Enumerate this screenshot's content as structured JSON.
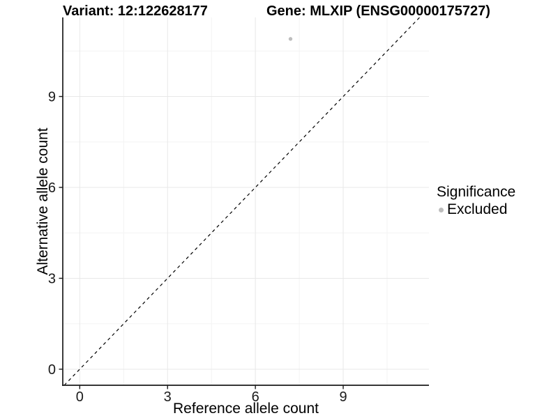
{
  "titles": {
    "variant": "Variant: 12:122628177",
    "gene": "Gene: MLXIP (ENSG00000175727)"
  },
  "chart_data": {
    "type": "scatter",
    "title_left": "Variant: 12:122628177",
    "title_right": "Gene: MLXIP (ENSG00000175727)",
    "xlabel": "Reference allele count",
    "ylabel": "Alternative allele count",
    "x_ticks": [
      0,
      3,
      6,
      9
    ],
    "y_ticks": [
      0,
      3,
      6,
      9
    ],
    "xlim": [
      -0.58,
      11.93
    ],
    "ylim": [
      -0.53,
      11.61
    ],
    "grid": "major+minor",
    "points": [
      {
        "x": 7.2,
        "y": 10.9,
        "series": "Excluded"
      }
    ],
    "reference_line": {
      "type": "identity",
      "slope": 1,
      "intercept": 0,
      "style": "dashed",
      "color": "#000000"
    },
    "legend": {
      "title": "Significance",
      "position": "right",
      "items": [
        {
          "label": "Excluded",
          "color": "#bdbdbd"
        }
      ]
    },
    "colors": {
      "point": "#bdbdbd",
      "grid_major": "#e8e8e8",
      "grid_minor": "#f3f3f3",
      "axis": "#1a1a1a",
      "dashed_line": "#000000"
    }
  }
}
